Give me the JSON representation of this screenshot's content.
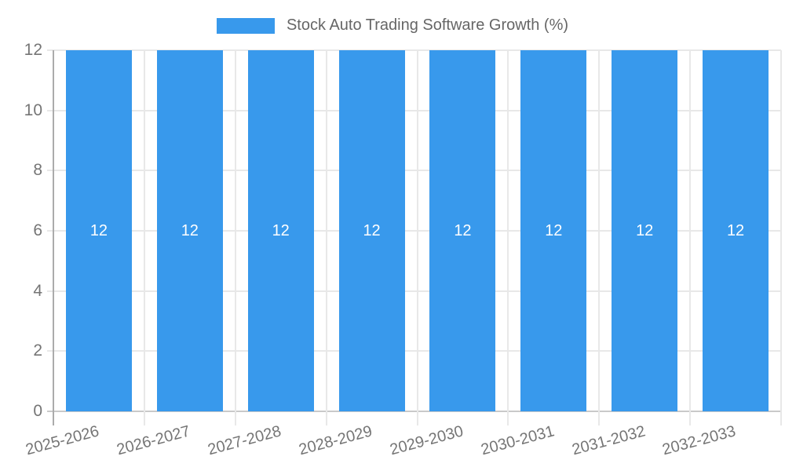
{
  "chart_data": {
    "type": "bar",
    "legend": "Stock Auto Trading Software Growth (%)",
    "legend_position": "top",
    "categories": [
      "2025-2026",
      "2026-2027",
      "2027-2028",
      "2028-2029",
      "2029-2030",
      "2030-2031",
      "2031-2032",
      "2032-2033"
    ],
    "values": [
      12,
      12,
      12,
      12,
      12,
      12,
      12,
      12
    ],
    "value_labels": [
      "12",
      "12",
      "12",
      "12",
      "12",
      "12",
      "12",
      "12"
    ],
    "ylim": [
      0,
      12
    ],
    "yticks": [
      0,
      2,
      4,
      6,
      8,
      10,
      12
    ],
    "grid": true,
    "x_label_rotation_deg": -15,
    "bar_color": "#3899ec",
    "value_label_color": "#ffffff",
    "gridline_color": "#e8e8e8",
    "axis_color": "#ababab",
    "tick_text_color": "#757575"
  }
}
